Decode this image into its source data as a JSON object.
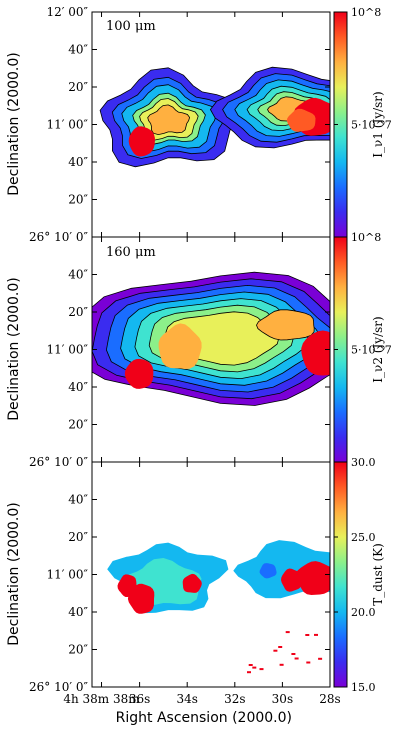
{
  "figure": {
    "shared_ylabel": "Declination (2000.0)",
    "shared_xlabel": "Right Ascension (2000.0)",
    "x_ticks": [
      "4h 38m 38m",
      "36s",
      "34s",
      "32s",
      "30s",
      "28s"
    ],
    "y_ticks": [
      "26° 10′ 0″",
      "20″",
      "40″",
      "11′ 00″",
      "20″",
      "40″",
      "12′ 00″"
    ]
  },
  "colors": {
    "colormap": [
      "#7a00d6",
      "#3a2cf0",
      "#1a6dff",
      "#14b8f0",
      "#3fe3d0",
      "#8cf08a",
      "#e8f05a",
      "#ffb040",
      "#ff5a24",
      "#f00018"
    ],
    "background": "#ffffff",
    "contour": "#000000"
  },
  "chart_data": [
    {
      "type": "heatmap",
      "label": "100 μm",
      "colorbar": {
        "label": "I_ν1 (Jy/sr)",
        "min_label": "",
        "max_label": "10^8",
        "mid_label": "5·10^7",
        "range": [
          0,
          100000000
        ]
      },
      "xlim": [
        "4h 38m 38s",
        "4h 38m 28s"
      ],
      "ylim": [
        "26° 10′ 0″",
        "26° 12′ 0″"
      ],
      "sources": [
        {
          "ra_s": 35.8,
          "dec_s": 51,
          "peak": 1.0
        },
        {
          "ra_s": 28.5,
          "dec_s": 64,
          "peak": 1.0
        }
      ]
    },
    {
      "type": "heatmap",
      "label": "160 μm",
      "colorbar": {
        "label": "I_ν2 (Jy/sr)",
        "min_label": "",
        "max_label": "10^8",
        "mid_label": "5·10^7",
        "range": [
          0,
          100000000
        ]
      },
      "xlim": [
        "4h 38m 38s",
        "4h 38m 28s"
      ],
      "ylim": [
        "26° 10′ 0″",
        "26° 12′ 0″"
      ],
      "sources": [
        {
          "ra_s": 36.0,
          "dec_s": 47,
          "peak": 1.0
        },
        {
          "ra_s": 34.3,
          "dec_s": 61,
          "peak": 0.85
        },
        {
          "ra_s": 29.8,
          "dec_s": 73,
          "peak": 0.8
        },
        {
          "ra_s": 28.3,
          "dec_s": 58,
          "peak": 1.0
        }
      ]
    },
    {
      "type": "heatmap",
      "label": "",
      "colorbar": {
        "label": "T_dust (K)",
        "ticks": [
          "15.0",
          "20.0",
          "25.0",
          "30.0"
        ],
        "range": [
          15,
          30
        ]
      },
      "xlim": [
        "4h 38m 38s",
        "4h 38m 28s"
      ],
      "ylim": [
        "26° 10′ 0″",
        "26° 12′ 0″"
      ],
      "typical_value": 21.0
    }
  ]
}
